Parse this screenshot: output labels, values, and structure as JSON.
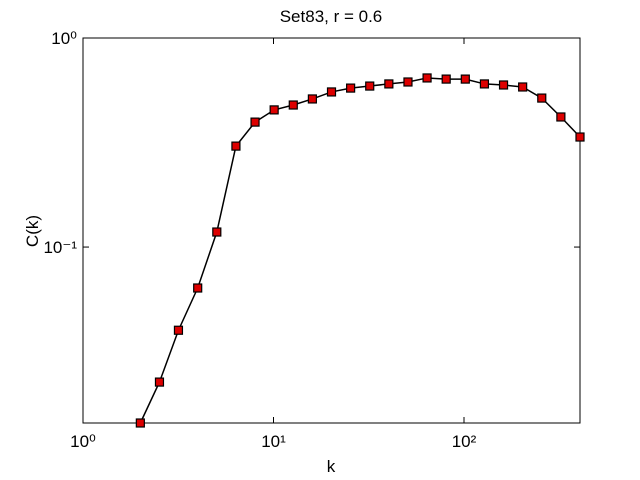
{
  "chart_data": {
    "type": "line",
    "title": "Set83, r = 0.6",
    "x_label": "k",
    "y_label": "C(k)",
    "x_scale": "log",
    "y_scale": "log",
    "x": [
      2,
      2.52,
      3.17,
      4,
      5.04,
      6.35,
      8,
      10.08,
      12.7,
      16,
      20.16,
      25.4,
      32,
      40.32,
      50.8,
      64,
      80.63,
      101.59,
      128,
      161.27,
      203.19,
      256,
      322.54,
      406.37
    ],
    "series": [
      {
        "color": "#dd0000",
        "line_color": "#000000",
        "values": [
          0.0144,
          0.0226,
          0.04,
          0.0637,
          0.118,
          0.304,
          0.396,
          0.453,
          0.478,
          0.511,
          0.552,
          0.576,
          0.589,
          0.603,
          0.616,
          0.644,
          0.636,
          0.636,
          0.603,
          0.596,
          0.583,
          0.516,
          0.419,
          0.336
        ]
      }
    ],
    "xlim": [
      1,
      406.37
    ],
    "ylim": [
      0.0144,
      1
    ],
    "xticks": [
      {
        "value": 1,
        "label": "10⁰"
      },
      {
        "value": 10,
        "label": "10¹"
      },
      {
        "value": 100,
        "label": "10²"
      }
    ],
    "yticks": [
      {
        "value": 0.1,
        "label": "10⁻¹"
      },
      {
        "value": 1,
        "label": "10⁰"
      }
    ]
  }
}
